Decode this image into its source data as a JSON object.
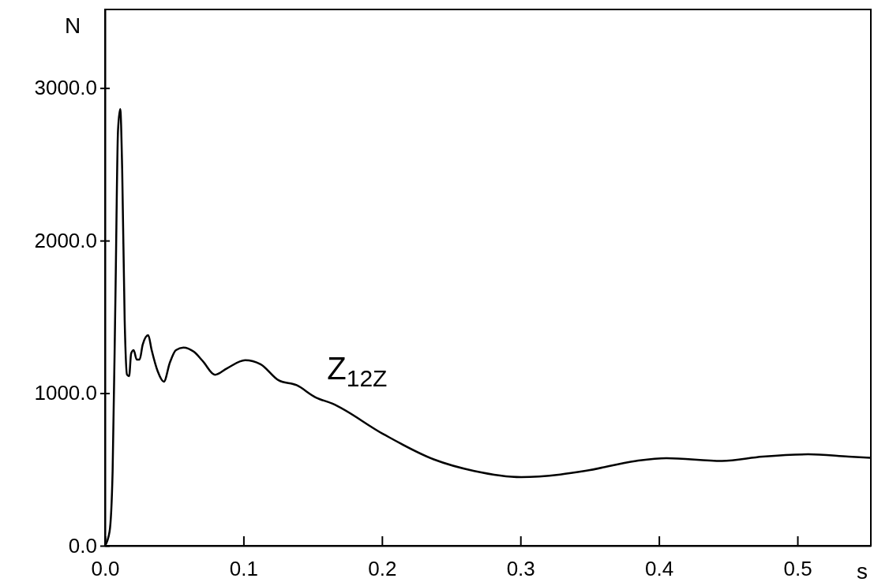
{
  "chart_data": {
    "type": "line",
    "xlabel": "s",
    "ylabel": "N",
    "xlim": [
      0,
      0.553
    ],
    "ylim": [
      0,
      3515
    ],
    "xticks": [
      {
        "value": 0,
        "label": "0.0"
      },
      0.1,
      0.2,
      0.3,
      0.4,
      0.5
    ],
    "yticks": [
      {
        "value": 0,
        "label": "0.0"
      },
      {
        "value": 1000,
        "label": "1000.0"
      },
      {
        "value": 2000,
        "label": "2000.0"
      },
      {
        "value": 3000,
        "label": "3000.0"
      }
    ],
    "grid": false,
    "marker": "none",
    "line_style": "solid",
    "annotations": [
      "Z$_{12Z}$"
    ],
    "series": [
      {
        "color": "#000000",
        "x": [
          0,
          0.0033,
          0.0055,
          0.0076,
          0.0094,
          0.011,
          0.0124,
          0.0142,
          0.0159,
          0.0174,
          0.0189,
          0.0207,
          0.0229,
          0.025,
          0.0272,
          0.0312,
          0.0337,
          0.0381,
          0.0425,
          0.0468,
          0.0512,
          0.0566,
          0.0642,
          0.0707,
          0.0794,
          0.0881,
          0.1012,
          0.1123,
          0.1253,
          0.1384,
          0.152,
          0.164,
          0.2009,
          0.2374,
          0.2666,
          0.3006,
          0.3287,
          0.347,
          0.3835,
          0.4054,
          0.4455,
          0.4748,
          0.5077,
          0.5369,
          0.5526
        ],
        "values": [
          0,
          93,
          490,
          1674,
          2724,
          2863,
          2466,
          1478,
          1121,
          1111,
          1261,
          1282,
          1220,
          1220,
          1318,
          1380,
          1282,
          1142,
          1075,
          1199,
          1282,
          1299,
          1271,
          1209,
          1121,
          1163,
          1216,
          1190,
          1085,
          1052,
          973,
          932,
          732,
          566,
          490,
          450,
          467,
          491,
          556,
          574,
          556,
          584,
          599,
          584,
          576
        ]
      }
    ]
  }
}
